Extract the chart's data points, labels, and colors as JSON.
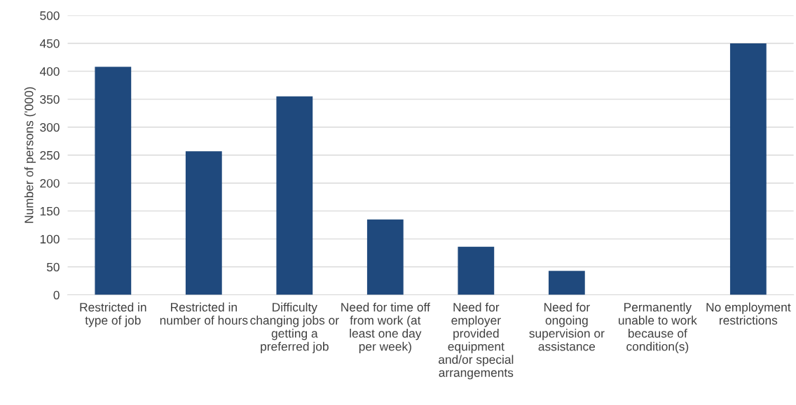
{
  "chart_data": {
    "type": "bar",
    "ylabel": "Number of persons ('000)",
    "categories": [
      "Restricted in\ntype of job",
      "Restricted in\nnumber of hours",
      "Difficulty\nchanging jobs or\ngetting a\npreferred job",
      "Need for time off\nfrom work (at\nleast one day\nper week)",
      "Need for\nemployer\nprovided\nequipment\nand/or special\narrangements",
      "Need for\nongoing\nsupervision or\nassistance",
      "Permanently\nunable to work\nbecause of\ncondition(s)",
      "No employment\nrestrictions"
    ],
    "values": [
      408,
      257,
      355,
      135,
      86,
      43,
      null,
      450
    ],
    "color": "#1f497d",
    "ylim": [
      0,
      500
    ],
    "yticks": [
      0,
      50,
      100,
      150,
      200,
      250,
      300,
      350,
      400,
      450,
      500
    ],
    "grid": "y"
  }
}
